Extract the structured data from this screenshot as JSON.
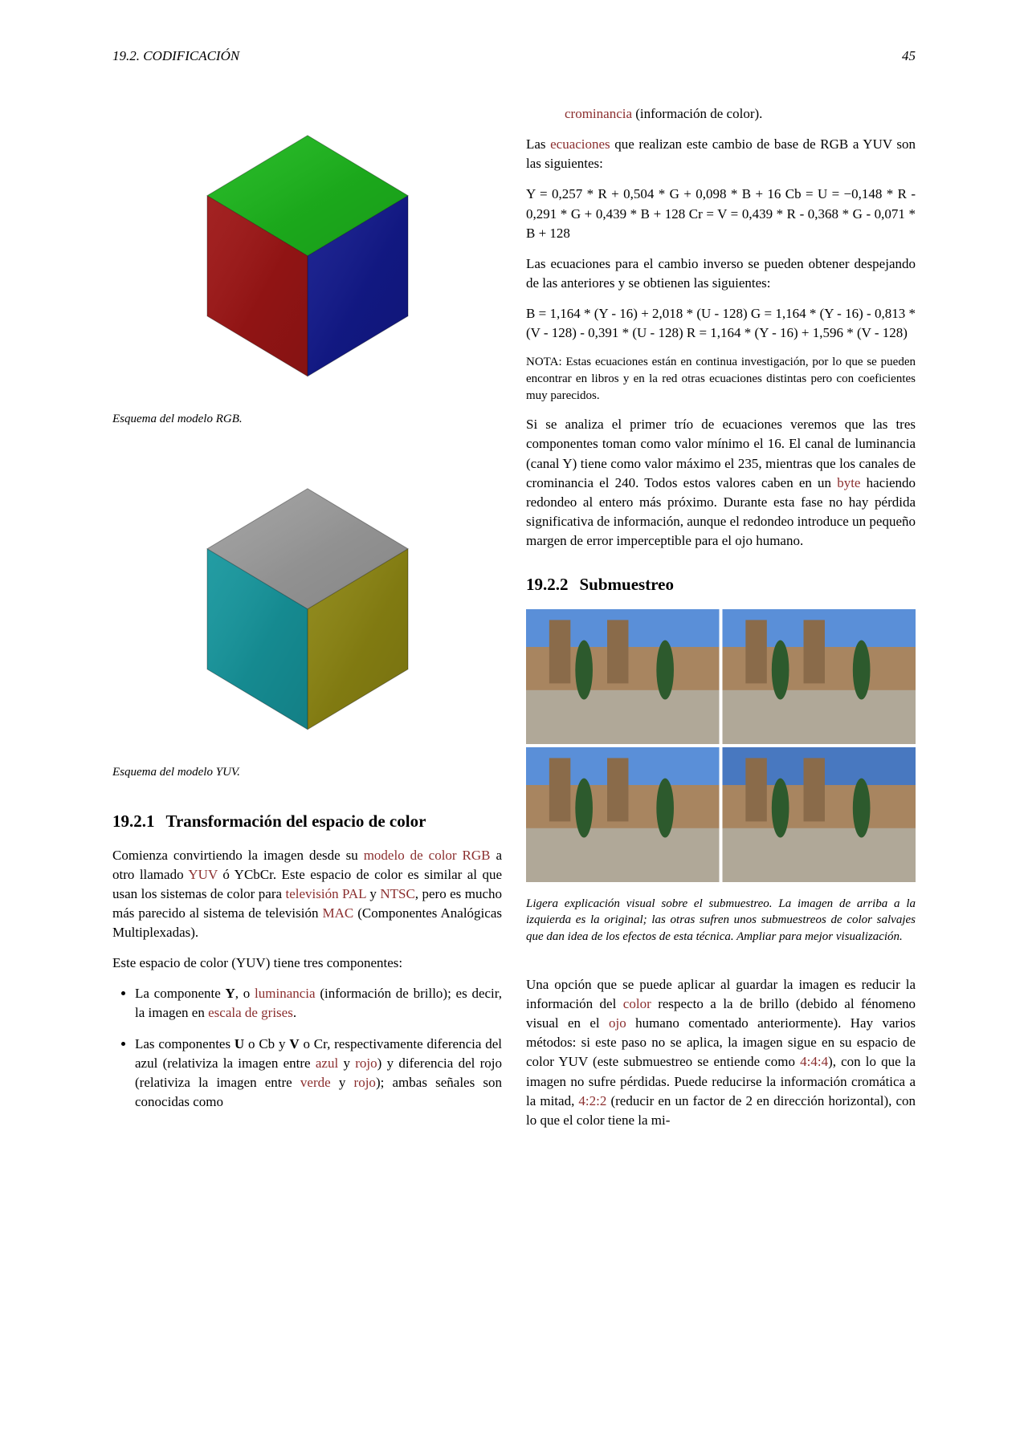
{
  "header": {
    "section": "19.2.   CODIFICACIÓN",
    "page": "45"
  },
  "cubes": {
    "rgb": {
      "faces": {
        "top": "#1aa01a",
        "left": "#b01818",
        "right": "#1820b0"
      },
      "caption": "Esquema del modelo RGB."
    },
    "yuv": {
      "faces": {
        "top": "#8a8a8a",
        "left": "#1aa8b0",
        "right": "#b0a818"
      },
      "caption": "Esquema del modelo YUV."
    }
  },
  "sec1921": {
    "num": "19.2.1",
    "title": "Transformación del espacio de color",
    "p1a": "Comienza convirtiendo la imagen desde su ",
    "link_modelo": "modelo de color RGB",
    "p1b": " a otro llamado ",
    "link_yuv": "YUV",
    "p1c": " ó YCbCr. Este espacio de color es similar al que usan los sistemas de color para ",
    "link_tv": "televisión PAL",
    "p1d": " y ",
    "link_ntsc": "NTSC",
    "p1e": ", pero es mucho más parecido al sistema de televisión ",
    "link_mac": "MAC",
    "p1f": " (Componentes Analógicas Multiplexadas).",
    "p2": "Este espacio de color (YUV) tiene tres componentes:",
    "li1a": "La componente ",
    "li1b": "Y",
    "li1c": ", o ",
    "li1_link1": "luminancia",
    "li1d": " (información de brillo); es decir, la imagen en ",
    "li1_link2": "escala de grises",
    "li1e": ".",
    "li2a": "Las componentes ",
    "li2b": "U",
    "li2c": " o Cb y ",
    "li2d": "V",
    "li2e": " o Cr, respectivamente diferencia del azul (relativiza la imagen entre ",
    "li2_link1": "azul",
    "li2f": " y ",
    "li2_link2": "rojo",
    "li2g": ") y diferencia del rojo (relativiza la imagen entre ",
    "li2_link3": "verde",
    "li2h": " y ",
    "li2_link4": "rojo",
    "li2i": "); ambas señales son conocidas como ",
    "li2_link5": "crominancia",
    "li2j": " (información de color)."
  },
  "rcol": {
    "p_eq_intro_a": "Las ",
    "link_ecuaciones": "ecuaciones",
    "p_eq_intro_b": " que realizan este cambio de base de RGB a YUV son las siguientes:",
    "eq1": "Y = 0,257 * R + 0,504 * G + 0,098 * B + 16 Cb = U = −0,148 * R - 0,291 * G + 0,439 * B + 128 Cr = V = 0,439 * R - 0,368 * G - 0,071 * B + 128",
    "p_inv": "Las ecuaciones para el cambio inverso se pueden obtener despejando de las anteriores y se obtienen las siguientes:",
    "eq2": "B = 1,164 * (Y - 16) + 2,018 * (U - 128) G = 1,164 * (Y - 16) - 0,813 * (V - 128) - 0,391 * (U - 128) R = 1,164 * (Y - 16) + 1,596 * (V - 128)",
    "nota": "NOTA: Estas ecuaciones están en continua investigación, por lo que se pueden encontrar en libros y en la red otras ecuaciones distintas pero con coeficientes muy parecidos.",
    "p_analiza_a": "Si se analiza el primer trío de ecuaciones veremos que las tres componentes toman como valor mínimo el 16. El canal de luminancia (canal Y) tiene como valor máximo el 235, mientras que los canales de crominancia el 240. Todos estos valores caben en un ",
    "link_byte": "byte",
    "p_analiza_b": " haciendo redondeo al entero más próximo. Durante esta fase no hay pérdida significativa de información, aunque el redondeo introduce un pequeño margen de error imperceptible para el ojo humano."
  },
  "sec1922": {
    "num": "19.2.2",
    "title": "Submuestreo"
  },
  "plaza": {
    "caption": "Ligera explicación visual sobre el submuestreo. La imagen de arriba a la izquierda es la original; las otras sufren unos submuestreos de color salvajes que dan idea de los efectos de esta técnica. Ampliar para mejor visualización.",
    "sky": "#5a8fd8",
    "bldg": "#a88560",
    "tower": "#8a6b4a",
    "tree": "#2d5a2d",
    "ground": "#b0a898",
    "sky4": "#4878c0"
  },
  "sub_p": {
    "a": "Una opción que se puede aplicar al guardar la imagen es reducir la información del ",
    "link_color": "color",
    "b": " respecto a la de brillo (debido al fénomeno visual en el ",
    "link_ojo": "ojo",
    "c": " humano comentado anteriormente). Hay varios métodos: si este paso no se aplica, la imagen sigue en su espacio de color YUV (este submuestreo se entiende como ",
    "link_444": "4:4:4",
    "d": "), con lo que la imagen no sufre pérdidas. Puede reducirse la información cromática a la mitad, ",
    "link_422": "4:2:2",
    "e": " (reducir en un factor de 2 en dirección horizontal), con lo que el color tiene la mi-"
  }
}
